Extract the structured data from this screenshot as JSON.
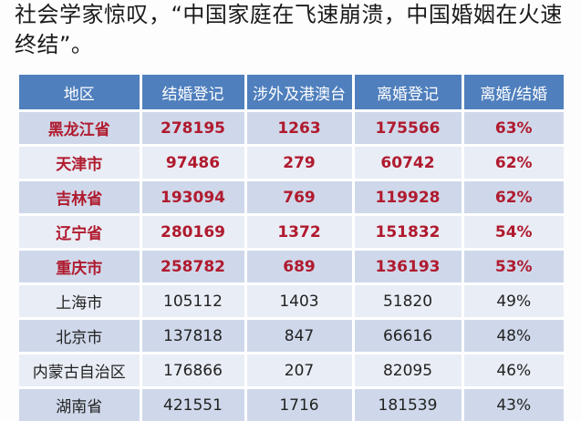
{
  "intro": {
    "lines": [
      "社会学家惊叹，“中国家庭在飞速崩溃，中国婚姻在火速",
      "终结”。"
    ]
  },
  "table": {
    "headers": [
      "地区",
      "结婚登记",
      "涉外及港澳台",
      "离婚登记",
      "离婚/结婚"
    ],
    "rows": [
      {
        "region": "黑龙江省",
        "marriage": "278195",
        "foreign": "1263",
        "divorce": "175566",
        "ratio": "63%",
        "highlight": true
      },
      {
        "region": "天津市",
        "marriage": "97486",
        "foreign": "279",
        "divorce": "60742",
        "ratio": "62%",
        "highlight": true
      },
      {
        "region": "吉林省",
        "marriage": "193094",
        "foreign": "769",
        "divorce": "119928",
        "ratio": "62%",
        "highlight": true
      },
      {
        "region": "辽宁省",
        "marriage": "280169",
        "foreign": "1372",
        "divorce": "151832",
        "ratio": "54%",
        "highlight": true
      },
      {
        "region": "重庆市",
        "marriage": "258782",
        "foreign": "689",
        "divorce": "136193",
        "ratio": "53%",
        "highlight": true
      },
      {
        "region": "上海市",
        "marriage": "105112",
        "foreign": "1403",
        "divorce": "51820",
        "ratio": "49%",
        "highlight": false
      },
      {
        "region": "北京市",
        "marriage": "137818",
        "foreign": "847",
        "divorce": "66616",
        "ratio": "48%",
        "highlight": false
      },
      {
        "region": "内蒙古自治区",
        "marriage": "176866",
        "foreign": "207",
        "divorce": "82095",
        "ratio": "46%",
        "highlight": false
      },
      {
        "region": "湖南省",
        "marriage": "421551",
        "foreign": "1716",
        "divorce": "181539",
        "ratio": "43%",
        "highlight": false
      }
    ]
  },
  "colors": {
    "header_bg": "#4f7fbd",
    "row_odd": "#cfd8ea",
    "row_even": "#e9edf5",
    "highlight_text": "#b01a2e"
  }
}
